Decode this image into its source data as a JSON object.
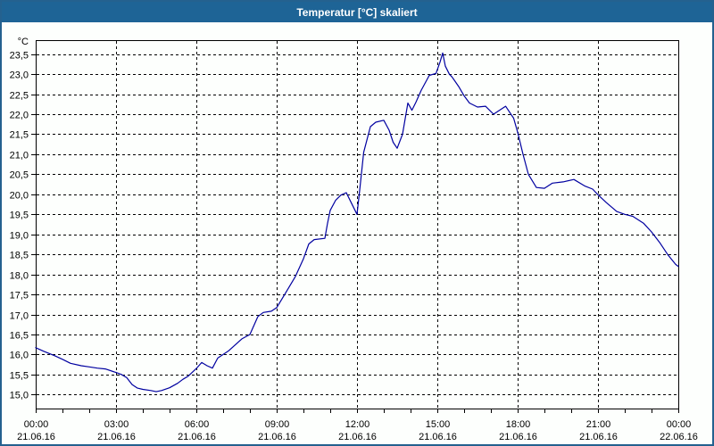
{
  "window": {
    "title": "Temperatur [°C] skaliert"
  },
  "colors": {
    "titlebar_bg": "#1E6496",
    "titlebar_text": "#FFFFFF",
    "window_border": "#24618F",
    "background": "#FDFFFD",
    "plot_border": "#000000",
    "grid": "#000000",
    "text": "#000000",
    "line": "#0000A0"
  },
  "chart_data": {
    "type": "line",
    "title": "Temperatur [°C] skaliert",
    "ylabel": "°C",
    "xlabel": "",
    "grid": "dashed",
    "legend_position": "none",
    "ylim": [
      14.65,
      23.85
    ],
    "xlim_hours": [
      0,
      24
    ],
    "minor_x_tick_every_hours": 1,
    "y_ticks": [
      {
        "value": 23.5,
        "label": "23,5"
      },
      {
        "value": 23.0,
        "label": "23,0"
      },
      {
        "value": 22.5,
        "label": "22,5"
      },
      {
        "value": 22.0,
        "label": "22,0"
      },
      {
        "value": 21.5,
        "label": "21,5"
      },
      {
        "value": 21.0,
        "label": "21,0"
      },
      {
        "value": 20.5,
        "label": "20,5"
      },
      {
        "value": 20.0,
        "label": "20,0"
      },
      {
        "value": 19.5,
        "label": "19,5"
      },
      {
        "value": 19.0,
        "label": "19,0"
      },
      {
        "value": 18.5,
        "label": "18,5"
      },
      {
        "value": 18.0,
        "label": "18,0"
      },
      {
        "value": 17.5,
        "label": "17,5"
      },
      {
        "value": 17.0,
        "label": "17,0"
      },
      {
        "value": 16.5,
        "label": "16,5"
      },
      {
        "value": 16.0,
        "label": "16,0"
      },
      {
        "value": 15.5,
        "label": "15,5"
      },
      {
        "value": 15.0,
        "label": "15,0"
      }
    ],
    "x_ticks": [
      {
        "hour": 0,
        "time": "00:00",
        "date": "21.06.16"
      },
      {
        "hour": 3,
        "time": "03:00",
        "date": "21.06.16"
      },
      {
        "hour": 6,
        "time": "06:00",
        "date": "21.06.16"
      },
      {
        "hour": 9,
        "time": "09:00",
        "date": "21.06.16"
      },
      {
        "hour": 12,
        "time": "12:00",
        "date": "21.06.16"
      },
      {
        "hour": 15,
        "time": "15:00",
        "date": "21.06.16"
      },
      {
        "hour": 18,
        "time": "18:00",
        "date": "21.06.16"
      },
      {
        "hour": 21,
        "time": "21:00",
        "date": "21.06.16"
      },
      {
        "hour": 24,
        "time": "00:00",
        "date": "22.06.16"
      }
    ],
    "series": [
      {
        "name": "Temperatur [°C]",
        "color": "#0000A0",
        "points": [
          [
            0.0,
            16.17
          ],
          [
            0.3,
            16.08
          ],
          [
            0.7,
            15.97
          ],
          [
            1.0,
            15.88
          ],
          [
            1.3,
            15.78
          ],
          [
            1.7,
            15.72
          ],
          [
            2.0,
            15.69
          ],
          [
            2.3,
            15.66
          ],
          [
            2.6,
            15.64
          ],
          [
            3.0,
            15.55
          ],
          [
            3.2,
            15.5
          ],
          [
            3.4,
            15.42
          ],
          [
            3.6,
            15.25
          ],
          [
            3.8,
            15.16
          ],
          [
            4.0,
            15.13
          ],
          [
            4.3,
            15.1
          ],
          [
            4.5,
            15.07
          ],
          [
            4.7,
            15.1
          ],
          [
            5.0,
            15.17
          ],
          [
            5.3,
            15.28
          ],
          [
            5.5,
            15.38
          ],
          [
            5.7,
            15.46
          ],
          [
            6.0,
            15.65
          ],
          [
            6.2,
            15.8
          ],
          [
            6.4,
            15.72
          ],
          [
            6.6,
            15.66
          ],
          [
            6.8,
            15.91
          ],
          [
            7.2,
            16.09
          ],
          [
            7.7,
            16.39
          ],
          [
            8.0,
            16.5
          ],
          [
            8.3,
            16.95
          ],
          [
            8.5,
            17.05
          ],
          [
            8.8,
            17.08
          ],
          [
            9.0,
            17.17
          ],
          [
            9.3,
            17.5
          ],
          [
            9.7,
            17.95
          ],
          [
            10.0,
            18.39
          ],
          [
            10.2,
            18.76
          ],
          [
            10.4,
            18.87
          ],
          [
            10.8,
            18.9
          ],
          [
            10.9,
            19.28
          ],
          [
            11.0,
            19.6
          ],
          [
            11.2,
            19.85
          ],
          [
            11.4,
            19.98
          ],
          [
            11.6,
            20.04
          ],
          [
            11.8,
            19.77
          ],
          [
            12.0,
            19.5
          ],
          [
            12.1,
            20.1
          ],
          [
            12.25,
            21.05
          ],
          [
            12.5,
            21.69
          ],
          [
            12.7,
            21.8
          ],
          [
            13.0,
            21.85
          ],
          [
            13.2,
            21.6
          ],
          [
            13.35,
            21.3
          ],
          [
            13.5,
            21.15
          ],
          [
            13.7,
            21.5
          ],
          [
            13.9,
            22.28
          ],
          [
            14.05,
            22.1
          ],
          [
            14.2,
            22.3
          ],
          [
            14.4,
            22.6
          ],
          [
            14.7,
            22.97
          ],
          [
            14.95,
            23.02
          ],
          [
            15.1,
            23.3
          ],
          [
            15.2,
            23.53
          ],
          [
            15.3,
            23.2
          ],
          [
            15.45,
            23.0
          ],
          [
            15.55,
            22.93
          ],
          [
            15.8,
            22.69
          ],
          [
            16.0,
            22.46
          ],
          [
            16.2,
            22.28
          ],
          [
            16.5,
            22.18
          ],
          [
            16.8,
            22.2
          ],
          [
            17.1,
            22.0
          ],
          [
            17.55,
            22.2
          ],
          [
            17.85,
            21.9
          ],
          [
            18.0,
            21.55
          ],
          [
            18.2,
            21.0
          ],
          [
            18.4,
            20.5
          ],
          [
            18.7,
            20.17
          ],
          [
            19.0,
            20.15
          ],
          [
            19.3,
            20.28
          ],
          [
            19.7,
            20.31
          ],
          [
            20.1,
            20.37
          ],
          [
            20.5,
            20.21
          ],
          [
            20.8,
            20.13
          ],
          [
            21.0,
            19.99
          ],
          [
            21.3,
            19.8
          ],
          [
            21.7,
            19.57
          ],
          [
            22.0,
            19.5
          ],
          [
            22.3,
            19.45
          ],
          [
            22.7,
            19.28
          ],
          [
            23.0,
            19.06
          ],
          [
            23.3,
            18.8
          ],
          [
            23.6,
            18.5
          ],
          [
            23.9,
            18.25
          ],
          [
            24.0,
            18.2
          ]
        ]
      }
    ]
  }
}
